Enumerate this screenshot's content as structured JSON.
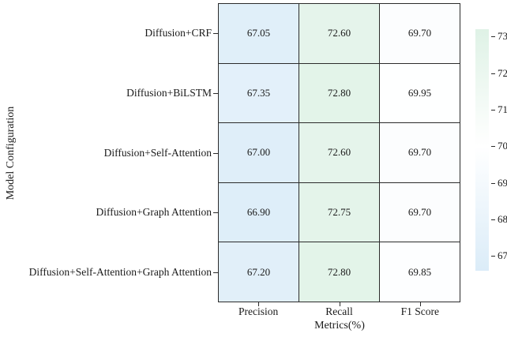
{
  "chart_data": {
    "type": "heatmap",
    "title": "",
    "xlabel": "Metrics(%)",
    "ylabel": "Model Configuration",
    "columns": [
      "Precision",
      "Recall",
      "F1 Score"
    ],
    "rows": [
      "Diffusion+CRF",
      "Diffusion+BiLSTM",
      "Diffusion+Self-Attention",
      "Diffusion+Graph Attention",
      "Diffusion+Self-Attention+Graph Attention"
    ],
    "values": [
      [
        67.05,
        72.6,
        69.7
      ],
      [
        67.35,
        72.8,
        69.95
      ],
      [
        67.0,
        72.6,
        69.7
      ],
      [
        66.9,
        72.75,
        69.7
      ],
      [
        67.2,
        72.8,
        69.85
      ]
    ],
    "value_decimals": 2,
    "colorbar": {
      "ticks": [
        73,
        72,
        71,
        70,
        69,
        68,
        67
      ],
      "vmin": 66.6,
      "vmax": 73.2,
      "mid_value": 70,
      "color_low": "#dbecf8",
      "color_mid": "#ffffff",
      "color_high": "#dff2e6"
    },
    "grid_line_color": "#2b2b2b",
    "text_color": "#1a1a1a",
    "legend_position": "right-colorbar",
    "grid": "on"
  }
}
